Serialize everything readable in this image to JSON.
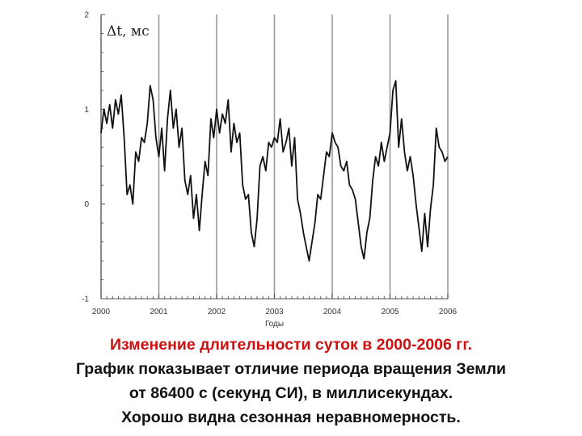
{
  "chart_data": {
    "type": "line",
    "unit_label": "Δt, мс",
    "xlabel": "Годы",
    "xlim": [
      2000,
      2006
    ],
    "ylim": [
      -1,
      2
    ],
    "x_ticks": [
      2000,
      2001,
      2002,
      2003,
      2004,
      2005,
      2006
    ],
    "y_ticks": [
      -1,
      0,
      1,
      2
    ],
    "vertical_gridlines_at": [
      2000,
      2001,
      2002,
      2003,
      2004,
      2005,
      2006
    ],
    "line_color": "#111111",
    "grid_color": "#9a9a9a",
    "series": [
      {
        "x": [
          2000.0,
          2000.05,
          2000.1,
          2000.15,
          2000.2,
          2000.25,
          2000.3,
          2000.35,
          2000.4,
          2000.45,
          2000.5,
          2000.55,
          2000.6,
          2000.65,
          2000.7,
          2000.75,
          2000.8,
          2000.85,
          2000.9,
          2000.95,
          2001.0,
          2001.05,
          2001.1,
          2001.15,
          2001.2,
          2001.25,
          2001.3,
          2001.35,
          2001.4,
          2001.45,
          2001.5,
          2001.55,
          2001.6,
          2001.65,
          2001.7,
          2001.75,
          2001.8,
          2001.85,
          2001.9,
          2001.95,
          2002.0,
          2002.05,
          2002.1,
          2002.15,
          2002.2,
          2002.25,
          2002.3,
          2002.35,
          2002.4,
          2002.45,
          2002.5,
          2002.55,
          2002.6,
          2002.65,
          2002.7,
          2002.75,
          2002.8,
          2002.85,
          2002.9,
          2002.95,
          2003.0,
          2003.05,
          2003.1,
          2003.15,
          2003.2,
          2003.25,
          2003.3,
          2003.35,
          2003.4,
          2003.45,
          2003.5,
          2003.55,
          2003.6,
          2003.65,
          2003.7,
          2003.75,
          2003.8,
          2003.85,
          2003.9,
          2003.95,
          2004.0,
          2004.05,
          2004.1,
          2004.15,
          2004.2,
          2004.25,
          2004.3,
          2004.35,
          2004.4,
          2004.45,
          2004.5,
          2004.55,
          2004.6,
          2004.65,
          2004.7,
          2004.75,
          2004.8,
          2004.85,
          2004.9,
          2004.95,
          2005.0,
          2005.05,
          2005.1,
          2005.15,
          2005.2,
          2005.25,
          2005.3,
          2005.35,
          2005.4,
          2005.45,
          2005.5,
          2005.55,
          2005.6,
          2005.65,
          2005.7,
          2005.75,
          2005.8,
          2005.85,
          2005.9,
          2005.95,
          2006.0
        ],
        "y": [
          0.75,
          1.0,
          0.85,
          1.05,
          0.8,
          1.1,
          0.95,
          1.15,
          0.7,
          0.1,
          0.2,
          0.0,
          0.55,
          0.45,
          0.7,
          0.65,
          0.85,
          1.25,
          1.1,
          0.7,
          0.5,
          0.8,
          0.35,
          0.9,
          1.2,
          0.8,
          1.0,
          0.6,
          0.8,
          0.25,
          0.1,
          0.3,
          -0.15,
          0.1,
          -0.28,
          0.1,
          0.45,
          0.3,
          0.9,
          0.7,
          1.0,
          0.75,
          0.95,
          0.85,
          1.1,
          0.55,
          0.85,
          0.65,
          0.75,
          0.2,
          0.05,
          0.1,
          -0.3,
          -0.45,
          -0.15,
          0.4,
          0.5,
          0.35,
          0.65,
          0.6,
          0.7,
          0.65,
          0.9,
          0.55,
          0.65,
          0.8,
          0.4,
          0.7,
          0.05,
          -0.1,
          -0.3,
          -0.45,
          -0.6,
          -0.4,
          -0.2,
          0.1,
          0.05,
          0.3,
          0.55,
          0.5,
          0.75,
          0.65,
          0.6,
          0.4,
          0.35,
          0.45,
          0.2,
          0.15,
          0.05,
          -0.2,
          -0.45,
          -0.58,
          -0.3,
          -0.15,
          0.25,
          0.5,
          0.4,
          0.65,
          0.45,
          0.6,
          0.75,
          1.2,
          1.3,
          0.6,
          0.9,
          0.55,
          0.35,
          0.5,
          0.3,
          0.0,
          -0.25,
          -0.5,
          -0.1,
          -0.45,
          -0.05,
          0.2,
          0.8,
          0.6,
          0.55,
          0.45,
          0.5
        ],
        "color": "#111111"
      }
    ]
  },
  "caption": {
    "line1": "Изменение длительности суток в 2000-2006 гг.",
    "line2": "График показывает отличие периода вращения Земли",
    "line3": "от 86400 с (секунд СИ), в миллисекундах.",
    "line4": "Хорошо видна сезонная неравномерность."
  }
}
